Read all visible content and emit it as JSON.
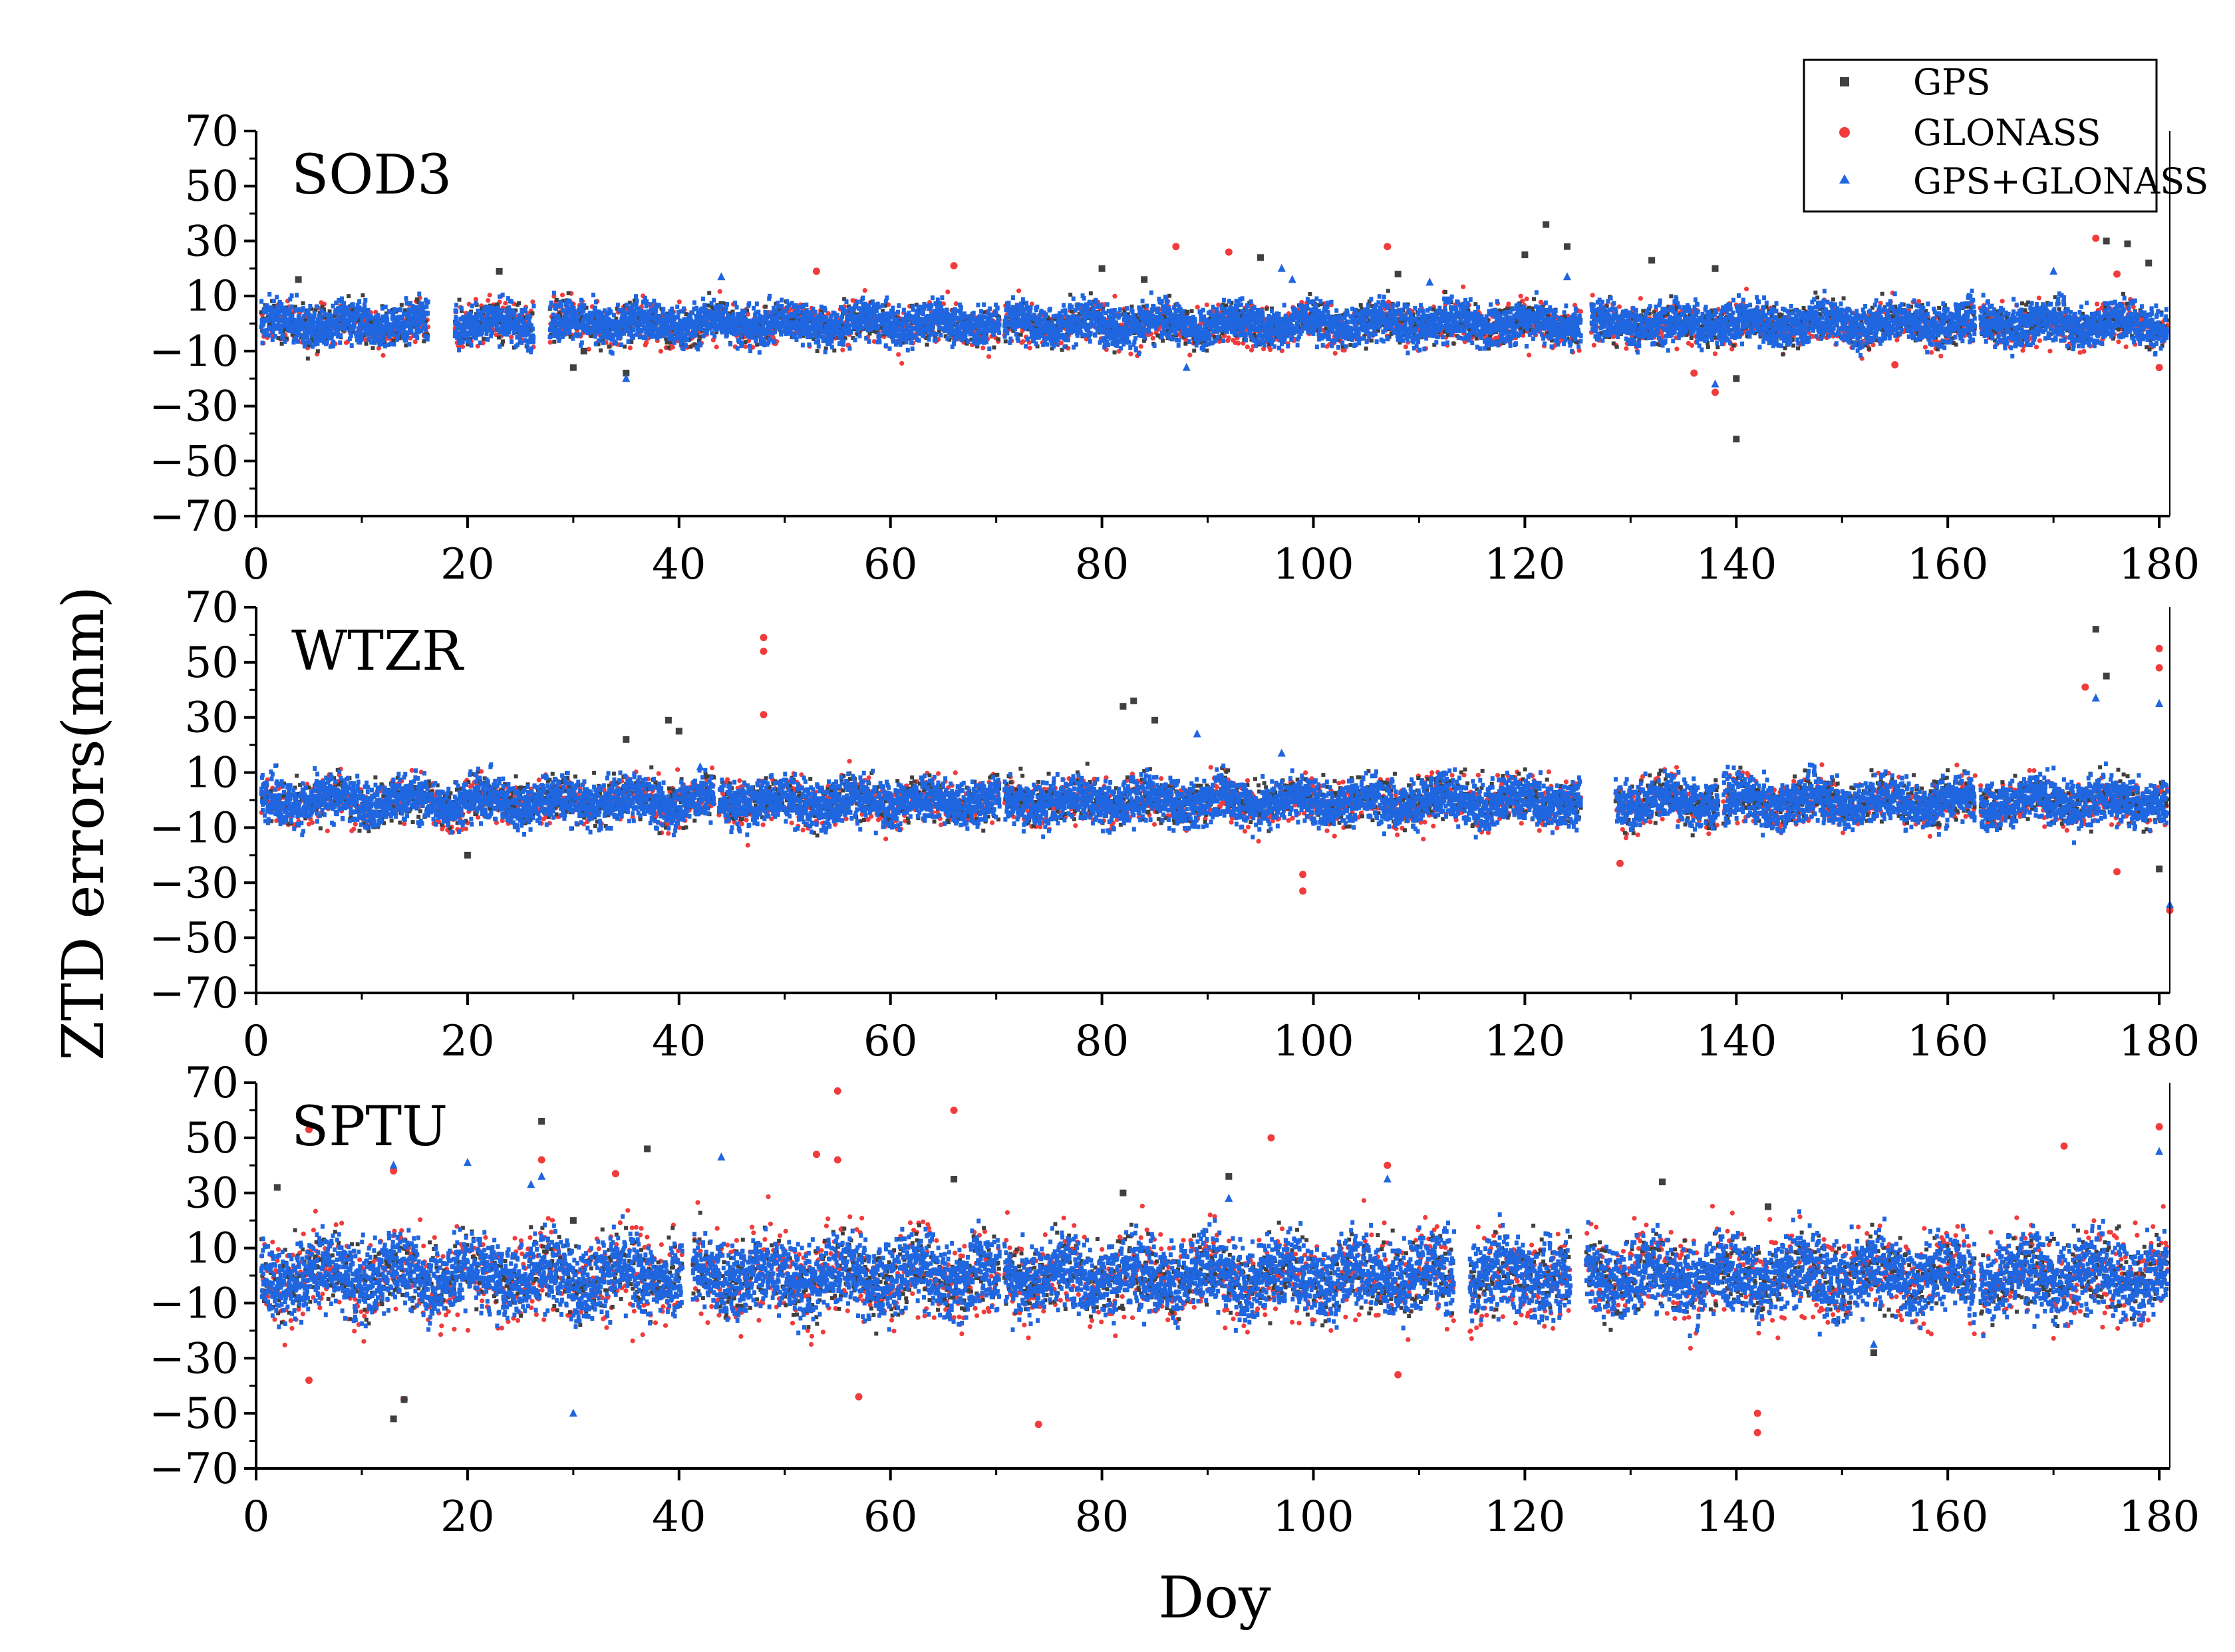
{
  "chart_data": {
    "type": "scatter",
    "title": "",
    "xlabel": "Doy",
    "ylabel": "ZTD errors(mm)",
    "xlim": [
      0,
      181
    ],
    "ylim": [
      -70,
      70
    ],
    "xticks": [
      "0",
      "20",
      "40",
      "60",
      "80",
      "100",
      "120",
      "140",
      "160",
      "180"
    ],
    "yticks": [
      "70",
      "50",
      "30",
      "10",
      "−10",
      "−30",
      "−50",
      "−70"
    ],
    "legend": {
      "position": "top-right",
      "entries": [
        {
          "name": "GPS",
          "marker": "square",
          "color": "#404040"
        },
        {
          "name": "GLONASS",
          "marker": "circle",
          "color": "#f03c3c"
        },
        {
          "name": "GPS+GLONASS",
          "marker": "triangle",
          "color": "#1f66e0"
        }
      ]
    },
    "panels": [
      {
        "station": "SOD3",
        "data_segments_doy": [
          [
            0.5,
            16.3
          ],
          [
            18.8,
            26.3
          ],
          [
            27.8,
            70.3
          ],
          [
            70.8,
            125.3
          ],
          [
            126.3,
            162.6
          ],
          [
            163.1,
            180.8
          ]
        ],
        "series": [
          {
            "name": "GPS",
            "typical_range_mm": [
              -12,
              12
            ],
            "outliers": [
              [
                4,
                16
              ],
              [
                23,
                19
              ],
              [
                30,
                -16
              ],
              [
                31,
                -10
              ],
              [
                35,
                -18
              ],
              [
                80,
                20
              ],
              [
                84,
                16
              ],
              [
                95,
                24
              ],
              [
                108,
                18
              ],
              [
                120,
                25
              ],
              [
                122,
                36
              ],
              [
                124,
                28
              ],
              [
                132,
                23
              ],
              [
                138,
                20
              ],
              [
                140,
                -20
              ],
              [
                140,
                -42
              ],
              [
                175,
                30
              ],
              [
                177,
                29
              ],
              [
                179,
                22
              ]
            ]
          },
          {
            "name": "GLONASS",
            "typical_range_mm": [
              -14,
              13
            ],
            "outliers": [
              [
                53,
                19
              ],
              [
                66,
                21
              ],
              [
                87,
                28
              ],
              [
                92,
                26
              ],
              [
                107,
                28
              ],
              [
                136,
                -18
              ],
              [
                138,
                -25
              ],
              [
                155,
                -15
              ],
              [
                174,
                31
              ],
              [
                176,
                18
              ],
              [
                180,
                -16
              ]
            ]
          },
          {
            "name": "GPS+GLONASS",
            "typical_range_mm": [
              -12,
              12
            ],
            "outliers": [
              [
                35,
                -20
              ],
              [
                44,
                17
              ],
              [
                88,
                -16
              ],
              [
                97,
                20
              ],
              [
                98,
                16
              ],
              [
                111,
                15
              ],
              [
                124,
                17
              ],
              [
                138,
                -22
              ],
              [
                170,
                19
              ]
            ]
          }
        ]
      },
      {
        "station": "WTZR",
        "data_segments_doy": [
          [
            0.5,
            43.3
          ],
          [
            43.8,
            70.3
          ],
          [
            70.8,
            125.3
          ],
          [
            128.6,
            138.3
          ],
          [
            138.8,
            162.6
          ],
          [
            163.1,
            180.8
          ]
        ],
        "series": [
          {
            "name": "GPS",
            "typical_range_mm": [
              -14,
              14
            ],
            "outliers": [
              [
                20,
                -20
              ],
              [
                35,
                22
              ],
              [
                39,
                29
              ],
              [
                40,
                25
              ],
              [
                82,
                34
              ],
              [
                83,
                36
              ],
              [
                85,
                29
              ],
              [
                174,
                62
              ],
              [
                175,
                45
              ],
              [
                180,
                -25
              ]
            ]
          },
          {
            "name": "GLONASS",
            "typical_range_mm": [
              -15,
              14
            ],
            "outliers": [
              [
                48,
                59
              ],
              [
                48,
                54
              ],
              [
                48,
                31
              ],
              [
                99,
                -27
              ],
              [
                99,
                -33
              ],
              [
                129,
                -23
              ],
              [
                173,
                41
              ],
              [
                176,
                -26
              ],
              [
                180,
                55
              ],
              [
                180,
                48
              ],
              [
                181,
                -40
              ]
            ]
          },
          {
            "name": "GPS+GLONASS",
            "typical_range_mm": [
              -14,
              13
            ],
            "outliers": [
              [
                42,
                12
              ],
              [
                89,
                24
              ],
              [
                97,
                17
              ],
              [
                174,
                37
              ],
              [
                180,
                35
              ],
              [
                181,
                -38
              ]
            ]
          }
        ]
      },
      {
        "station": "SPTU",
        "data_segments_doy": [
          [
            0.5,
            40.3
          ],
          [
            41.3,
            70.3
          ],
          [
            70.8,
            113.3
          ],
          [
            114.8,
            124.3
          ],
          [
            125.8,
            162.6
          ],
          [
            163.1,
            180.8
          ]
        ],
        "series": [
          {
            "name": "GPS",
            "typical_range_mm": [
              -22,
              22
            ],
            "outliers": [
              [
                2,
                32
              ],
              [
                13,
                -52
              ],
              [
                14,
                -45
              ],
              [
                27,
                56
              ],
              [
                30,
                20
              ],
              [
                37,
                46
              ],
              [
                66,
                35
              ],
              [
                82,
                30
              ],
              [
                92,
                36
              ],
              [
                133,
                34
              ],
              [
                143,
                25
              ],
              [
                153,
                -28
              ]
            ]
          },
          {
            "name": "GLONASS",
            "typical_range_mm": [
              -28,
              28
            ],
            "outliers": [
              [
                5,
                53
              ],
              [
                5,
                -38
              ],
              [
                13,
                38
              ],
              [
                14,
                -45
              ],
              [
                27,
                42
              ],
              [
                34,
                37
              ],
              [
                53,
                44
              ],
              [
                55,
                67
              ],
              [
                55,
                42
              ],
              [
                57,
                -44
              ],
              [
                66,
                60
              ],
              [
                74,
                -54
              ],
              [
                96,
                50
              ],
              [
                107,
                40
              ],
              [
                108,
                -36
              ],
              [
                142,
                -50
              ],
              [
                142,
                -57
              ],
              [
                171,
                47
              ],
              [
                180,
                54
              ]
            ]
          },
          {
            "name": "GPS+GLONASS",
            "typical_range_mm": [
              -22,
              22
            ],
            "outliers": [
              [
                13,
                40
              ],
              [
                20,
                41
              ],
              [
                26,
                33
              ],
              [
                27,
                36
              ],
              [
                30,
                -50
              ],
              [
                44,
                43
              ],
              [
                92,
                28
              ],
              [
                107,
                35
              ],
              [
                153,
                -25
              ],
              [
                180,
                45
              ]
            ]
          }
        ]
      }
    ]
  }
}
